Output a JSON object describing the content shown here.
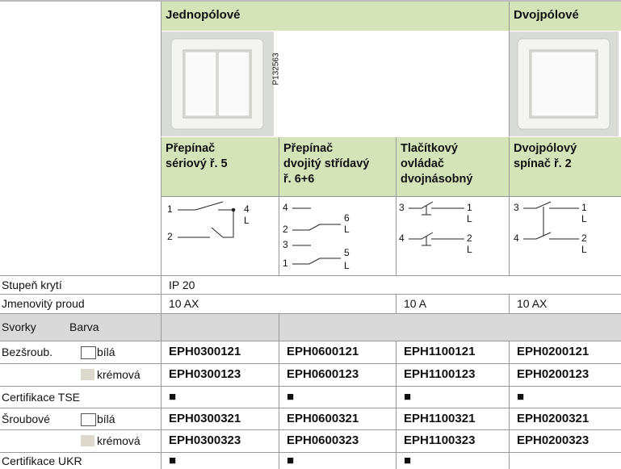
{
  "header": {
    "groups": [
      "Jednopólové",
      "Dvojpólové"
    ],
    "image_code": "P132563"
  },
  "products": [
    [
      "Přepínač",
      "sériový ř. 5"
    ],
    [
      "Přepínač",
      "dvojitý střídavý",
      "ř. 6+6"
    ],
    [
      "Tlačítkový",
      "ovládač",
      "dvojnásobný"
    ],
    [
      "Dvojpólový",
      "spínač ř. 2"
    ]
  ],
  "diagrams": [
    [
      "1",
      "2",
      "4",
      "L"
    ],
    [
      "4",
      "2",
      "3",
      "1",
      "6",
      "L",
      "5",
      "L"
    ],
    [
      "3",
      "4",
      "1",
      "L",
      "2",
      "L"
    ],
    [
      "3",
      "4",
      "1",
      "L",
      "2",
      "L"
    ]
  ],
  "rows": [
    {
      "label": "Stupeň krytí",
      "cells": [
        "IP 20"
      ]
    },
    {
      "label": "Jmenovitý proud",
      "cells": [
        "10 AX",
        "10 A",
        "10 AX"
      ]
    },
    {
      "label": "Svorky",
      "sub": "Barva",
      "cells": []
    },
    {
      "label": "Bezšroub.",
      "sub": "bílá",
      "cells": [
        "EPH0300121",
        "EPH0600121",
        "EPH1100121",
        "EPH0200121"
      ]
    },
    {
      "sub": "krémová",
      "cells": [
        "EPH0300123",
        "EPH0600123",
        "EPH1100123",
        "EPH0200123"
      ]
    },
    {
      "label": "Certifikace TSE",
      "cells": [
        "■",
        "■",
        "■",
        "■"
      ]
    },
    {
      "label": "Šroubové",
      "sub": "bílá",
      "cells": [
        "EPH0300321",
        "EPH0600321",
        "EPH1100321",
        "EPH0200321"
      ]
    },
    {
      "sub": "krémová",
      "cells": [
        "EPH0300323",
        "EPH0600323",
        "EPH1100323",
        "EPH0200323"
      ]
    },
    {
      "label": "Certifikace UKR",
      "cells": [
        "■",
        "■",
        "■"
      ]
    }
  ]
}
